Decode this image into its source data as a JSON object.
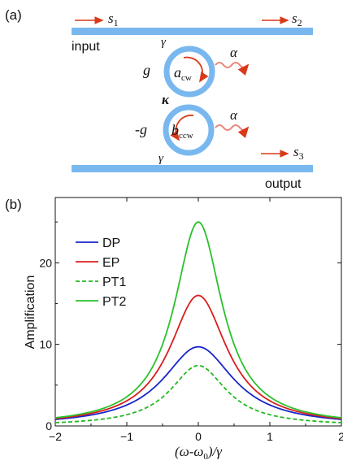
{
  "panel_a": {
    "label": "(a)",
    "input_label": "input",
    "output_label": "output",
    "s1": "s",
    "s1_sub": "1",
    "s2": "s",
    "s2_sub": "2",
    "s3": "s",
    "s3_sub": "3",
    "gamma": "γ",
    "kappa": "κ",
    "alpha": "α",
    "g": "g",
    "neg_g": "-g",
    "a_mode": "a",
    "a_sub": "cw",
    "b_mode": "b",
    "b_sub": "ccw"
  },
  "colors": {
    "waveguide": "#79b8ef",
    "arrow": "#d93a1a",
    "dp": "#1726c8",
    "ep": "#d81e1e",
    "pt1": "#22b81e",
    "pt2": "#2bc12b"
  },
  "panel_b": {
    "label": "(b)"
  },
  "chart_data": {
    "type": "line",
    "xlabel": "(ω-ω",
    "xlabel_sub": "0",
    "xlabel_end": ")/γ",
    "ylabel": "Amplification",
    "xlim": [
      -2,
      2
    ],
    "ylim": [
      0,
      28
    ],
    "xticks": [
      -2,
      -1,
      0,
      1,
      2
    ],
    "xtick_labels": [
      "−2",
      "−1",
      "0",
      "1",
      "2"
    ],
    "yticks": [
      0,
      10,
      20
    ],
    "ytick_labels": [
      "0",
      "10",
      "20"
    ],
    "legend_position": "top-left",
    "series": [
      {
        "name": "DP",
        "peak": 9.7,
        "baseline": 0.8,
        "style": "solid",
        "color": "#1726c8"
      },
      {
        "name": "EP",
        "peak": 16.0,
        "baseline": 0.9,
        "style": "solid",
        "color": "#d81e1e"
      },
      {
        "name": "PT1",
        "peak": 7.4,
        "baseline": 0.4,
        "style": "dashed",
        "color": "#22b81e"
      },
      {
        "name": "PT2",
        "peak": 25.0,
        "baseline": 1.0,
        "style": "solid",
        "color": "#2bc12b"
      }
    ]
  }
}
